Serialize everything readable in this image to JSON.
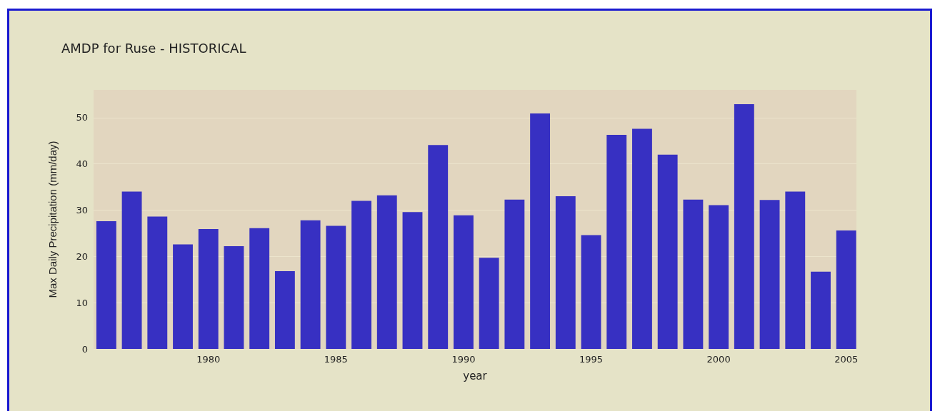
{
  "chart_data": {
    "type": "bar",
    "title": "AMDP for Ruse - HISTORICAL",
    "xlabel": "year",
    "ylabel": "Max Daily Precipitation (mm/day)",
    "x": [
      1976,
      1977,
      1978,
      1979,
      1980,
      1981,
      1982,
      1983,
      1984,
      1985,
      1986,
      1987,
      1988,
      1989,
      1990,
      1991,
      1992,
      1993,
      1994,
      1995,
      1996,
      1997,
      1998,
      1999,
      2000,
      2001,
      2002,
      2003,
      2004,
      2005
    ],
    "values": [
      27.6,
      34.0,
      28.6,
      22.6,
      25.9,
      22.2,
      26.1,
      16.8,
      27.8,
      26.6,
      32.0,
      33.2,
      29.6,
      44.1,
      28.9,
      19.7,
      32.3,
      50.9,
      33.0,
      24.6,
      46.3,
      47.6,
      42.0,
      32.3,
      31.1,
      52.9,
      32.2,
      34.0,
      16.7,
      25.6
    ],
    "color": "#3730c2",
    "xlim": [
      1975.5,
      2005.4
    ],
    "xticks": [
      1980,
      1985,
      1990,
      1995,
      2000,
      2005
    ],
    "ylim": [
      0,
      56
    ],
    "yticks": [
      0,
      10,
      20,
      30,
      40,
      50
    ],
    "grid": "y"
  }
}
